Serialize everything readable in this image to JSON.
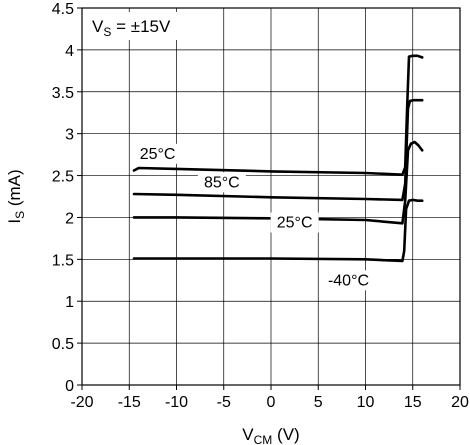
{
  "chart_data": {
    "type": "line",
    "xlabel": {
      "main": "V",
      "sub": "CM",
      "unit": " (V)"
    },
    "ylabel": {
      "main": "I",
      "sub": "S",
      "unit": " (mA)"
    },
    "annotation": {
      "main": "V",
      "sub": "S",
      "rest": " = ±15V"
    },
    "xlim": [
      -20,
      20
    ],
    "ylim": [
      0,
      4.5
    ],
    "xticks": [
      "-20",
      "-15",
      "-10",
      "-5",
      "0",
      "5",
      "10",
      "15",
      "20"
    ],
    "yticks": [
      "0",
      "0.5",
      "1",
      "1.5",
      "2",
      "2.5",
      "3",
      "3.5",
      "4",
      "4.5"
    ],
    "grid": true,
    "series": [
      {
        "name": "25°C",
        "points": [
          [
            -14.5,
            2.56
          ],
          [
            -14.0,
            2.59
          ],
          [
            -10,
            2.58
          ],
          [
            0,
            2.55
          ],
          [
            10,
            2.53
          ],
          [
            13.9,
            2.51
          ],
          [
            14.2,
            2.6
          ],
          [
            14.4,
            3.3
          ],
          [
            14.6,
            3.92
          ],
          [
            15.0,
            3.93
          ],
          [
            15.5,
            3.93
          ],
          [
            16.0,
            3.91
          ]
        ]
      },
      {
        "name": "85°C",
        "points": [
          [
            -14.5,
            2.28
          ],
          [
            -10,
            2.27
          ],
          [
            0,
            2.24
          ],
          [
            10,
            2.22
          ],
          [
            13.9,
            2.21
          ],
          [
            14.2,
            2.4
          ],
          [
            14.5,
            3.3
          ],
          [
            14.7,
            3.39
          ],
          [
            15.0,
            3.4
          ],
          [
            15.5,
            3.4
          ],
          [
            16.0,
            3.4
          ]
        ]
      },
      {
        "name": "25°C",
        "points": [
          [
            -14.5,
            2.0
          ],
          [
            -10,
            2.0
          ],
          [
            0,
            1.99
          ],
          [
            10,
            1.97
          ],
          [
            13.9,
            1.93
          ],
          [
            14.2,
            2.2
          ],
          [
            14.5,
            2.8
          ],
          [
            14.8,
            2.88
          ],
          [
            15.2,
            2.9
          ],
          [
            15.6,
            2.86
          ],
          [
            16.0,
            2.8
          ]
        ]
      },
      {
        "name": "-40°C",
        "points": [
          [
            -14.5,
            1.51
          ],
          [
            -10,
            1.51
          ],
          [
            0,
            1.51
          ],
          [
            10,
            1.5
          ],
          [
            13.9,
            1.48
          ],
          [
            14.1,
            1.6
          ],
          [
            14.3,
            2.1
          ],
          [
            14.6,
            2.2
          ],
          [
            15.0,
            2.21
          ],
          [
            15.5,
            2.2
          ],
          [
            16.0,
            2.2
          ]
        ]
      }
    ],
    "labels": [
      {
        "text": "25°C",
        "x": -12,
        "y": 2.7
      },
      {
        "text": "85°C",
        "x": -5.2,
        "y": 2.36
      },
      {
        "text": "25°C",
        "x": 2.5,
        "y": 1.88
      },
      {
        "text": "-40°C",
        "x": 8.2,
        "y": 1.19
      }
    ]
  }
}
